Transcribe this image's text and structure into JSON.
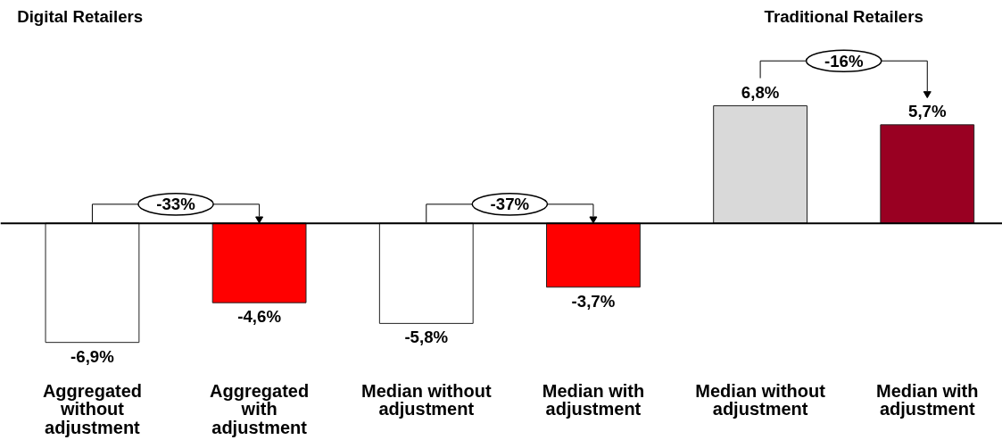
{
  "chart_data": {
    "type": "bar",
    "categories": [
      "Aggregated without adjustment",
      "Aggregated with adjustment",
      "Median without adjustment",
      "Median with adjustment",
      "Median without adjustment",
      "Median with adjustment"
    ],
    "values": [
      -6.9,
      -4.6,
      -5.8,
      -3.7,
      6.8,
      5.7
    ],
    "colors": [
      "#ffffff",
      "#ff0000",
      "#ffffff",
      "#ff0000",
      "#d9d9d9",
      "#990022"
    ],
    "value_labels": [
      "-6,9%",
      "-4,6%",
      "-5,8%",
      "-3,7%",
      "6,8%",
      "5,7%"
    ],
    "annotations": [
      "Digital Retailers",
      "Traditional Retailers",
      "-33%",
      "-37%",
      "-16%"
    ],
    "grid": false
  }
}
